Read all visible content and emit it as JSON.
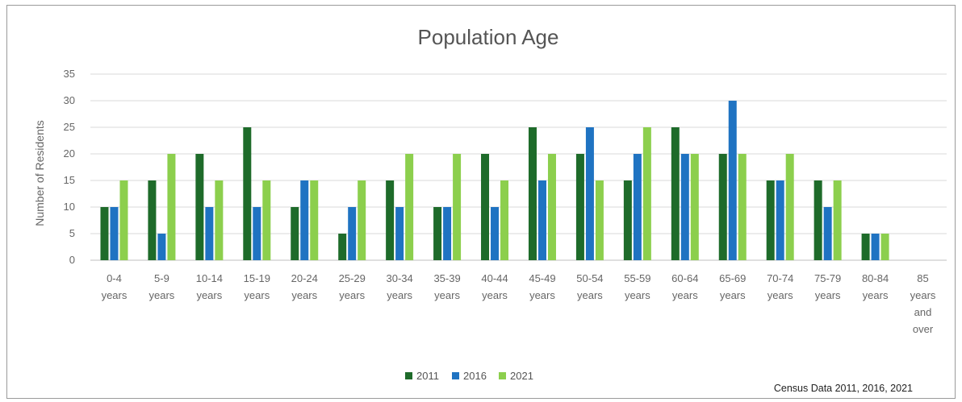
{
  "chart_data": {
    "type": "bar",
    "title": "Population Age",
    "xlabel": "",
    "ylabel": "Number of Residents",
    "ylim": [
      0,
      35
    ],
    "yticks": [
      0,
      5,
      10,
      15,
      20,
      25,
      30,
      35
    ],
    "grid": true,
    "legend_position": "bottom",
    "categories": [
      "0-4 years",
      "5-9 years",
      "10-14 years",
      "15-19 years",
      "20-24 years",
      "25-29 years",
      "30-34 years",
      "35-39 years",
      "40-44 years",
      "45-49 years",
      "50-54 years",
      "55-59 years",
      "60-64 years",
      "65-69 years",
      "70-74 years",
      "75-79 years",
      "80-84 years",
      "85 years and over"
    ],
    "category_label_lines": [
      [
        "0-4",
        "years"
      ],
      [
        "5-9",
        "years"
      ],
      [
        "10-14",
        "years"
      ],
      [
        "15-19",
        "years"
      ],
      [
        "20-24",
        "years"
      ],
      [
        "25-29",
        "years"
      ],
      [
        "30-34",
        "years"
      ],
      [
        "35-39",
        "years"
      ],
      [
        "40-44",
        "years"
      ],
      [
        "45-49",
        "years"
      ],
      [
        "50-54",
        "years"
      ],
      [
        "55-59",
        "years"
      ],
      [
        "60-64",
        "years"
      ],
      [
        "65-69",
        "years"
      ],
      [
        "70-74",
        "years"
      ],
      [
        "75-79",
        "years"
      ],
      [
        "80-84",
        "years"
      ],
      [
        "85",
        "years",
        "and",
        "over"
      ]
    ],
    "series": [
      {
        "name": "2011",
        "color": "#1e6b2a",
        "values": [
          10,
          15,
          20,
          25,
          10,
          5,
          15,
          10,
          20,
          25,
          20,
          15,
          25,
          20,
          15,
          15,
          5,
          0
        ]
      },
      {
        "name": "2016",
        "color": "#1f73c2",
        "values": [
          10,
          5,
          10,
          10,
          15,
          10,
          10,
          10,
          10,
          15,
          25,
          20,
          20,
          30,
          15,
          10,
          5,
          0
        ]
      },
      {
        "name": "2021",
        "color": "#8ccf4d",
        "values": [
          15,
          20,
          15,
          15,
          15,
          15,
          20,
          20,
          15,
          20,
          15,
          25,
          20,
          20,
          20,
          15,
          5,
          0
        ]
      }
    ]
  },
  "source_note": "Census Data 2011, 2016, 2021"
}
